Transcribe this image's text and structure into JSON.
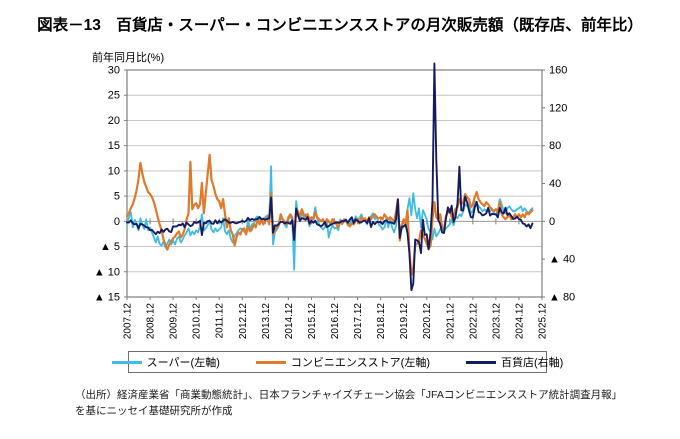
{
  "title": "図表－13　百貨店・スーパー・コンビニエンスストアの月次販売額（既存店、前年比）",
  "source_note": {
    "line1": "（出所）経済産業省「商業動態統計」、日本フランチャイズチェーン協会「JFAコンビニエンスストア統計調査月報」",
    "line2": "を基にニッセイ基礎研究所が作成"
  },
  "colors": {
    "grid": "#c6c6c6",
    "zero_line": "#9a9a9a",
    "border": "#7f7f7f",
    "text": "#1a1a1a"
  },
  "chart_data": {
    "type": "line",
    "title": "百貨店・スーパー・コンビニエンスストアの月次販売額（既存店、前年比）",
    "y_axis_unit_label": "前年同月比(%)",
    "grid": true,
    "legend_position": "bottom",
    "x": {
      "start": "2007.12",
      "months_total": 216,
      "tick_labels": [
        "2007.12",
        "2008.12",
        "2009.12",
        "2010.12",
        "2011.12",
        "2012.12",
        "2013.12",
        "2014.12",
        "2015.12",
        "2016.12",
        "2017.12",
        "2018.12",
        "2019.12",
        "2020.12",
        "2021.12",
        "2022.12",
        "2023.12",
        "2024.12",
        "2025.12"
      ]
    },
    "y_left": {
      "min": -15,
      "max": 30,
      "step": 5,
      "tick_labels": [
        "30",
        "25",
        "20",
        "15",
        "10",
        "5",
        "0",
        "▲ 5",
        "▲ 10",
        "▲ 15"
      ]
    },
    "y_right": {
      "min": -80,
      "max": 160,
      "step": 40,
      "tick_labels": [
        "160",
        "120",
        "80",
        "40",
        "0",
        "▲ 40",
        "▲ 80"
      ]
    },
    "series": [
      {
        "name": "スーパー(左軸)",
        "axis": "left",
        "color": "#3fbcdf",
        "width": 1.8,
        "values": [
          -0.5,
          0.8,
          1.8,
          -1.2,
          0.3,
          -0.5,
          -1.8,
          0.6,
          -0.8,
          -1.5,
          0.4,
          -1.8,
          -1.2,
          -2.2,
          -3.2,
          -4.2,
          -3.0,
          -4.5,
          -4.8,
          -4.0,
          -5.2,
          -4.4,
          -3.6,
          -4.6,
          -3.8,
          -4.6,
          -3.4,
          -3.0,
          -4.2,
          -3.6,
          -2.8,
          -2.2,
          -1.4,
          -2.8,
          -2.0,
          -2.6,
          -1.8,
          -2.2,
          -1.0,
          1.4,
          -1.8,
          -1.4,
          -0.8,
          0.2,
          -1.6,
          -2.2,
          -1.4,
          -2.0,
          -1.6,
          -1.2,
          0.6,
          -2.0,
          -2.6,
          -1.8,
          -3.4,
          -4.2,
          -2.8,
          -2.4,
          -1.8,
          -1.4,
          -1.6,
          -2.0,
          -2.6,
          0.4,
          -1.6,
          -0.6,
          -0.4,
          0.6,
          1.0,
          0.4,
          0.2,
          0.6,
          0.8,
          1.2,
          0.4,
          10.9,
          -4.6,
          -2.2,
          -1.6,
          -1.0,
          0.6,
          0.4,
          -0.6,
          -1.2,
          0.4,
          0.8,
          0.6,
          -9.6,
          4.0,
          1.6,
          0.4,
          1.6,
          0.8,
          1.4,
          1.0,
          -1.0,
          0.6,
          0.8,
          2.8,
          0.6,
          -0.6,
          -1.2,
          -1.6,
          -1.2,
          0.4,
          -3.2,
          -1.6,
          -0.8,
          -1.4,
          -1.2,
          -1.8,
          0.4,
          -0.6,
          0.0,
          0.4,
          -0.8,
          -0.4,
          0.6,
          -0.6,
          1.0,
          0.4,
          0.6,
          1.4,
          0.4,
          0.0,
          -0.6,
          0.6,
          1.0,
          1.6,
          0.4,
          1.0,
          -0.6,
          -1.0,
          -1.6,
          -1.2,
          0.6,
          -1.2,
          0.4,
          -1.2,
          -2.2,
          -1.0,
          3.6,
          -2.4,
          -1.6,
          -1.0,
          -1.0,
          2.4,
          4.6,
          1.2,
          5.6,
          2.4,
          0.6,
          2.6,
          -1.2,
          2.2,
          1.4,
          0.4,
          -1.6,
          -2.2,
          -3.6,
          -1.4,
          -3.0,
          -2.4,
          -1.6,
          -1.0,
          -2.0,
          -1.4,
          -1.0,
          -0.6,
          0.4,
          -0.8,
          1.0,
          0.6,
          1.4,
          1.0,
          2.0,
          3.4,
          3.0,
          3.6,
          1.6,
          2.0,
          4.0,
          3.6,
          3.0,
          2.6,
          2.0,
          2.4,
          2.0,
          2.6,
          2.0,
          2.4,
          1.6,
          1.4,
          2.0,
          4.4,
          3.4,
          2.0,
          1.6,
          2.6,
          3.0,
          2.4,
          2.0,
          2.0,
          2.4,
          2.6,
          3.0,
          2.0,
          2.6,
          2.0,
          1.6,
          2.2,
          2.6
        ]
      },
      {
        "name": "コンビニエンスストア(左軸)",
        "axis": "left",
        "color": "#e1782a",
        "width": 2.2,
        "values": [
          1.0,
          1.6,
          2.6,
          3.4,
          4.6,
          6.2,
          8.4,
          11.6,
          9.4,
          7.8,
          6.8,
          5.8,
          5.4,
          4.8,
          3.8,
          2.4,
          0.8,
          -0.6,
          -1.8,
          -3.6,
          -4.6,
          -5.6,
          -4.6,
          -4.0,
          -3.4,
          -3.0,
          -2.4,
          -2.0,
          -3.2,
          -2.6,
          -1.6,
          0.4,
          1.6,
          11.8,
          2.4,
          3.2,
          3.6,
          2.6,
          3.4,
          7.6,
          1.6,
          5.6,
          9.4,
          13.2,
          8.2,
          7.0,
          5.4,
          4.4,
          4.0,
          2.6,
          4.4,
          1.4,
          -1.2,
          0.6,
          -1.8,
          -2.6,
          -4.8,
          -3.2,
          -2.2,
          -2.6,
          -1.6,
          -1.4,
          -2.6,
          -1.0,
          -2.0,
          -1.6,
          -0.6,
          -1.2,
          0.4,
          -0.6,
          0.4,
          -0.6,
          0.4,
          0.8,
          -0.6,
          5.6,
          -2.6,
          -1.6,
          -1.2,
          -0.6,
          1.4,
          0.4,
          0.0,
          -0.6,
          0.8,
          1.4,
          0.8,
          -3.0,
          1.6,
          2.0,
          0.8,
          2.4,
          1.4,
          0.8,
          1.4,
          0.4,
          0.8,
          0.4,
          1.8,
          0.8,
          0.4,
          0.0,
          0.4,
          -0.6,
          0.4,
          0.0,
          -0.6,
          0.4,
          0.0,
          -0.6,
          -1.2,
          0.0,
          -0.4,
          0.4,
          0.0,
          -0.6,
          -1.0,
          -0.4,
          -0.6,
          0.0,
          0.4,
          -0.4,
          0.8,
          0.4,
          0.6,
          0.0,
          0.8,
          0.4,
          1.0,
          1.4,
          0.8,
          0.6,
          0.8,
          0.4,
          1.4,
          0.8,
          0.4,
          0.8,
          0.4,
          0.0,
          1.8,
          4.4,
          -3.8,
          -0.8,
          0.4,
          -0.4,
          2.2,
          -5.8,
          -10.6,
          -9.2,
          -4.8,
          -4.4,
          -3.8,
          -1.8,
          -2.8,
          -3.4,
          -4.4,
          -5.4,
          -4.8,
          0.6,
          3.8,
          0.8,
          0.4,
          1.4,
          -1.2,
          -1.6,
          1.0,
          1.8,
          2.4,
          0.8,
          0.4,
          2.4,
          2.8,
          4.4,
          3.4,
          3.8,
          5.4,
          4.8,
          4.4,
          2.8,
          3.4,
          4.8,
          5.8,
          4.4,
          3.8,
          3.4,
          3.0,
          3.8,
          3.4,
          2.8,
          2.4,
          2.0,
          2.4,
          1.8,
          3.8,
          1.4,
          0.8,
          0.4,
          0.8,
          1.4,
          0.4,
          0.8,
          1.4,
          0.8,
          1.4,
          0.8,
          1.4,
          0.8,
          1.8,
          1.4,
          1.8,
          2.2
        ]
      },
      {
        "name": "百貨店(右軸)",
        "axis": "right",
        "color": "#151c5e",
        "width": 1.9,
        "values": [
          -1.0,
          -1.2,
          1.0,
          -2.2,
          -3.2,
          -2.6,
          -7.6,
          -2.6,
          -3.2,
          -4.6,
          -6.2,
          -6.6,
          -9.4,
          -9.2,
          -11.4,
          -13.6,
          -11.0,
          -12.4,
          -8.6,
          -11.2,
          -8.6,
          -7.8,
          -10.6,
          -11.4,
          -5.2,
          -5.6,
          -5.2,
          -3.6,
          -4.2,
          -2.2,
          -6.2,
          -1.2,
          -3.2,
          -5.0,
          -4.2,
          -0.8,
          -1.6,
          -1.2,
          0.6,
          -14.6,
          -1.6,
          -2.2,
          0.2,
          0.6,
          -2.2,
          -2.6,
          1.2,
          -2.2,
          0.6,
          -1.2,
          0.6,
          2.2,
          0.6,
          -1.2,
          -1.6,
          -0.6,
          -1.6,
          -2.2,
          -1.2,
          -0.6,
          0.6,
          -0.6,
          0.6,
          3.6,
          1.2,
          2.6,
          1.6,
          2.2,
          2.6,
          4.6,
          2.2,
          2.6,
          1.6,
          2.6,
          3.2,
          25.4,
          -12.0,
          -4.2,
          -4.6,
          -2.6,
          -0.6,
          -0.6,
          -2.2,
          -1.2,
          -1.6,
          -2.6,
          1.2,
          -19.6,
          13.6,
          6.4,
          0.6,
          3.4,
          2.6,
          1.6,
          4.6,
          -2.6,
          0.6,
          -1.6,
          0.6,
          -3.2,
          -4.0,
          -5.2,
          -3.6,
          -0.6,
          -6.0,
          -5.0,
          -3.6,
          -2.6,
          -1.6,
          -1.2,
          -1.6,
          -1.0,
          0.6,
          0.0,
          1.6,
          -1.6,
          2.0,
          4.4,
          -1.8,
          2.2,
          0.6,
          -1.2,
          -1.0,
          0.6,
          0.6,
          -2.0,
          3.4,
          -6.0,
          -0.6,
          -3.0,
          -0.6,
          -1.0,
          -0.6,
          -2.9,
          0.4,
          1.0,
          -1.1,
          -1.0,
          -1.5,
          -2.6,
          2.3,
          23.1,
          -17.5,
          -6.0,
          -5.0,
          -3.5,
          -12.5,
          -33.4,
          -72.8,
          -65.6,
          -19.1,
          -20.3,
          -22.0,
          -33.6,
          1.7,
          -14.3,
          -13.7,
          -29.7,
          -10.7,
          21.8,
          167.0,
          65.2,
          1.6,
          -2.9,
          -11.7,
          -12.3,
          2.9,
          14.8,
          9.0,
          16.5,
          -0.7,
          4.6,
          19.0,
          57.8,
          11.7,
          11.6,
          26.1,
          20.2,
          11.4,
          4.5,
          4.0,
          15.1,
          20.5,
          9.8,
          8.9,
          6.3,
          7.0,
          8.6,
          14.2,
          6.1,
          8.0,
          7.4,
          7.5,
          4.2,
          14.1,
          9.5,
          8.2,
          14.4,
          6.7,
          8.6,
          5.6,
          2.5,
          3.0,
          4.9,
          2.5,
          1.5,
          -2.2,
          -2.9,
          -5.5,
          -3.2,
          -7.3,
          -2.3
        ]
      }
    ]
  }
}
